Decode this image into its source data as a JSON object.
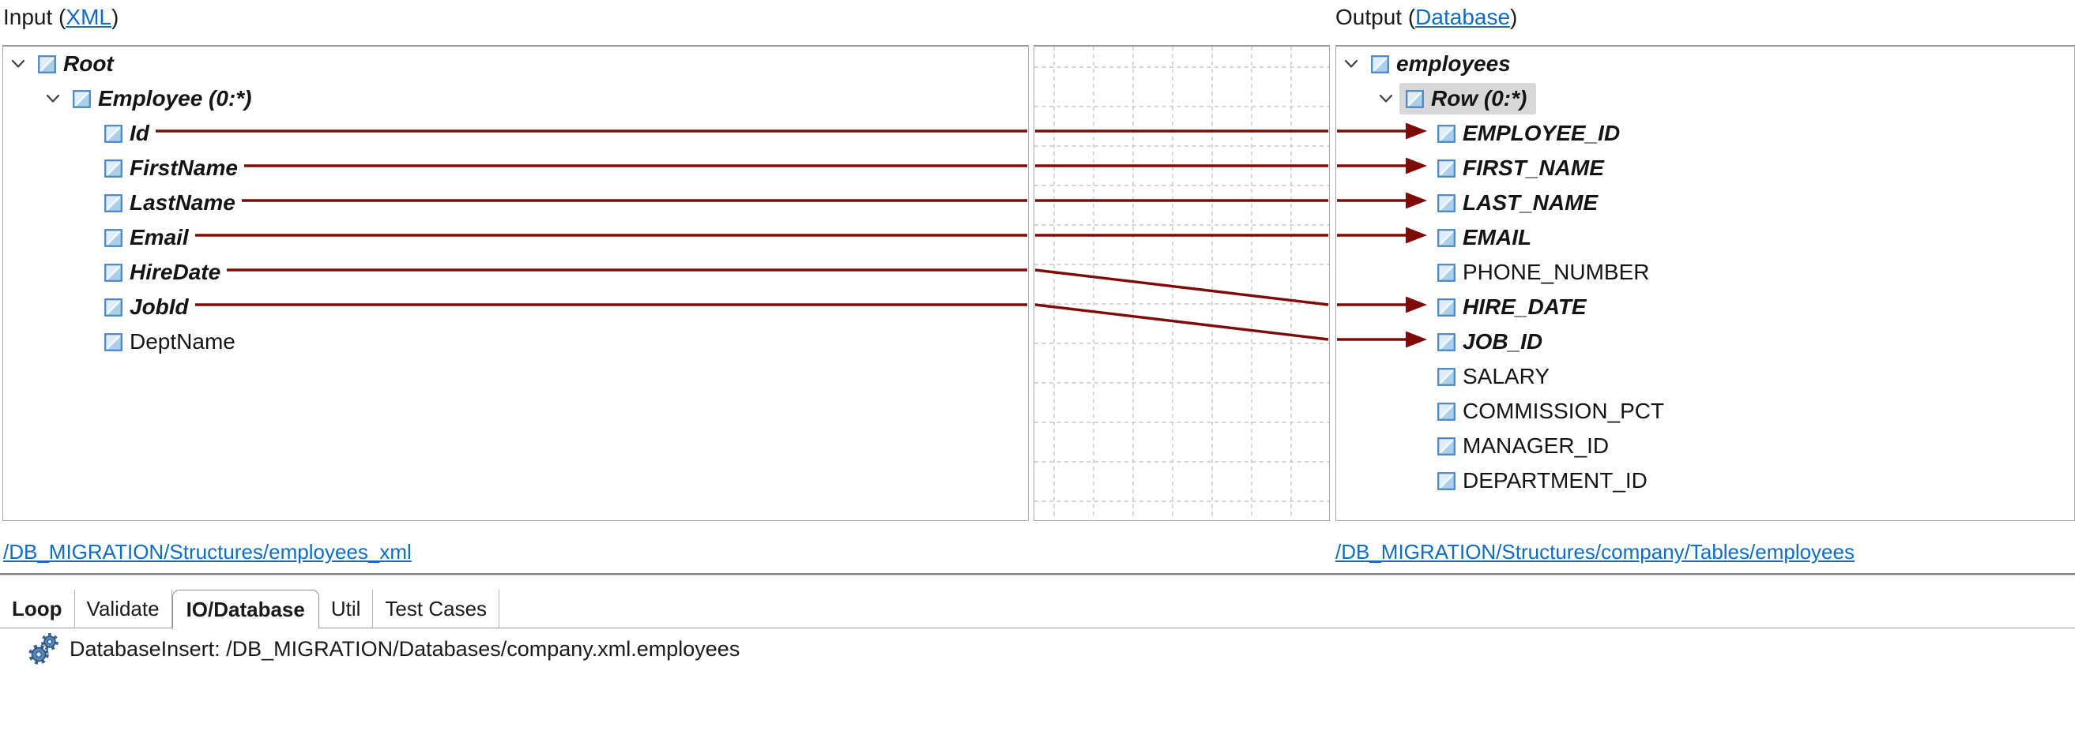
{
  "header": {
    "input": {
      "prefix": "Input (",
      "link": "XML",
      "suffix": ")"
    },
    "output": {
      "prefix": "Output (",
      "link": "Database",
      "suffix": ")"
    }
  },
  "input_tree": {
    "source_link": "/DB_MIGRATION/Structures/employees_xml",
    "nodes": [
      {
        "label": "Root",
        "level": 0,
        "expander": true,
        "icon": "xml-node-icon",
        "emphasis": true
      },
      {
        "label": "Employee (0:*)",
        "level": 1,
        "expander": true,
        "icon": "xml-node-icon",
        "emphasis": true
      },
      {
        "label": "Id",
        "level": 2,
        "expander": false,
        "icon": "xml-node-icon",
        "emphasis": true
      },
      {
        "label": "FirstName",
        "level": 2,
        "expander": false,
        "icon": "xml-node-icon",
        "emphasis": true
      },
      {
        "label": "LastName",
        "level": 2,
        "expander": false,
        "icon": "xml-node-icon",
        "emphasis": true
      },
      {
        "label": "Email",
        "level": 2,
        "expander": false,
        "icon": "xml-node-icon",
        "emphasis": true
      },
      {
        "label": "HireDate",
        "level": 2,
        "expander": false,
        "icon": "xml-node-icon",
        "emphasis": true
      },
      {
        "label": "JobId",
        "level": 2,
        "expander": false,
        "icon": "xml-node-icon",
        "emphasis": true
      },
      {
        "label": "DeptName",
        "level": 2,
        "expander": false,
        "icon": "xml-node-icon",
        "emphasis": false
      }
    ]
  },
  "output_tree": {
    "source_link": "/DB_MIGRATION/Structures/company/Tables/employees",
    "nodes": [
      {
        "label": "employees",
        "level": 0,
        "expander": true,
        "icon": "db-field-icon",
        "emphasis": true
      },
      {
        "label": "Row (0:*)",
        "level": 1,
        "expander": true,
        "icon": "db-field-icon",
        "emphasis": true,
        "selected": true
      },
      {
        "label": "EMPLOYEE_ID",
        "level": 2,
        "expander": false,
        "icon": "db-field-icon",
        "emphasis": true
      },
      {
        "label": "FIRST_NAME",
        "level": 2,
        "expander": false,
        "icon": "db-field-icon",
        "emphasis": true
      },
      {
        "label": "LAST_NAME",
        "level": 2,
        "expander": false,
        "icon": "db-field-icon",
        "emphasis": true
      },
      {
        "label": "EMAIL",
        "level": 2,
        "expander": false,
        "icon": "db-field-icon",
        "emphasis": true
      },
      {
        "label": "PHONE_NUMBER",
        "level": 2,
        "expander": false,
        "icon": "db-field-icon",
        "emphasis": false
      },
      {
        "label": "HIRE_DATE",
        "level": 2,
        "expander": false,
        "icon": "db-field-icon",
        "emphasis": true
      },
      {
        "label": "JOB_ID",
        "level": 2,
        "expander": false,
        "icon": "db-field-icon",
        "emphasis": true
      },
      {
        "label": "SALARY",
        "level": 2,
        "expander": false,
        "icon": "db-field-icon",
        "emphasis": false
      },
      {
        "label": "COMMISSION_PCT",
        "level": 2,
        "expander": false,
        "icon": "db-field-icon",
        "emphasis": false
      },
      {
        "label": "MANAGER_ID",
        "level": 2,
        "expander": false,
        "icon": "db-field-icon",
        "emphasis": false
      },
      {
        "label": "DEPARTMENT_ID",
        "level": 2,
        "expander": false,
        "icon": "db-field-icon",
        "emphasis": false
      }
    ]
  },
  "mappings": [
    {
      "from": "Id",
      "to": "EMPLOYEE_ID"
    },
    {
      "from": "FirstName",
      "to": "FIRST_NAME"
    },
    {
      "from": "LastName",
      "to": "LAST_NAME"
    },
    {
      "from": "Email",
      "to": "EMAIL"
    },
    {
      "from": "HireDate",
      "to": "HIRE_DATE"
    },
    {
      "from": "JobId",
      "to": "JOB_ID"
    }
  ],
  "tabs": [
    {
      "label": "Loop",
      "bold": true,
      "selected": false
    },
    {
      "label": "Validate",
      "bold": false,
      "selected": false
    },
    {
      "label": "IO/Database",
      "bold": true,
      "selected": true
    },
    {
      "label": "Util",
      "bold": false,
      "selected": false
    },
    {
      "label": "Test Cases",
      "bold": false,
      "selected": false
    }
  ],
  "status": {
    "icon": "gears-icon",
    "text": "DatabaseInsert: /DB_MIGRATION/Databases/company.xml.employees"
  },
  "colors": {
    "link_blue": "#0f6cc5",
    "mapping_line": "#7f0a0a",
    "selection_gray": "#d8d8d8",
    "node_icon_blue": "#4b86c4",
    "grid_dash_gray": "#c7c7c7"
  }
}
